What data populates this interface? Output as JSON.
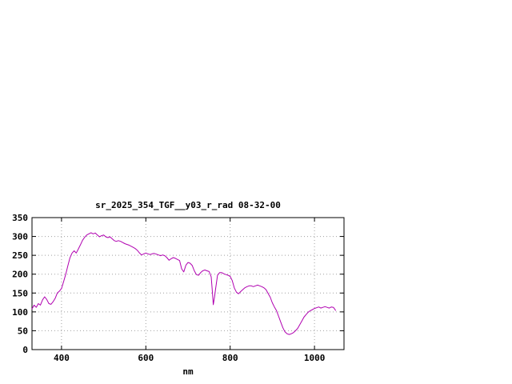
{
  "figure": {
    "title": "sr_2025_354_TGF__y03_r_rad 08-32-00",
    "xlabel": "nm"
  },
  "chart_data": {
    "type": "line",
    "title": "sr_2025_354_TGF__y03_r_rad 08-32-00",
    "xlabel": "nm",
    "ylabel": "",
    "xlim": [
      330,
      1070
    ],
    "ylim": [
      0,
      350
    ],
    "xticks": [
      400,
      600,
      800,
      1000
    ],
    "yticks": [
      0,
      50,
      100,
      150,
      200,
      250,
      300,
      350
    ],
    "grid": true,
    "grid_color": "#a0a0a0",
    "line_color": "#b000b0",
    "legend_position": "none",
    "series": [
      {
        "name": "sr_2025_354_TGF__y03_r_rad",
        "x": [
          330,
          335,
          340,
          345,
          350,
          355,
          360,
          365,
          370,
          375,
          380,
          385,
          390,
          395,
          400,
          405,
          410,
          415,
          420,
          425,
          430,
          435,
          440,
          445,
          450,
          455,
          460,
          465,
          470,
          475,
          480,
          485,
          490,
          495,
          500,
          505,
          510,
          515,
          520,
          525,
          530,
          535,
          540,
          545,
          550,
          555,
          560,
          565,
          570,
          575,
          580,
          585,
          590,
          595,
          600,
          605,
          610,
          615,
          620,
          625,
          630,
          635,
          640,
          645,
          650,
          655,
          660,
          665,
          670,
          675,
          680,
          685,
          690,
          695,
          700,
          705,
          710,
          715,
          720,
          725,
          730,
          735,
          740,
          745,
          750,
          755,
          758,
          760,
          763,
          765,
          770,
          775,
          780,
          785,
          790,
          795,
          800,
          805,
          810,
          815,
          820,
          825,
          830,
          835,
          840,
          845,
          850,
          855,
          860,
          865,
          870,
          875,
          880,
          885,
          890,
          895,
          900,
          905,
          910,
          915,
          920,
          925,
          930,
          935,
          940,
          945,
          950,
          955,
          960,
          965,
          970,
          975,
          980,
          985,
          990,
          995,
          1000,
          1005,
          1010,
          1015,
          1020,
          1025,
          1030,
          1035,
          1040,
          1045,
          1050
        ],
        "y": [
          108,
          118,
          112,
          122,
          118,
          132,
          140,
          133,
          122,
          120,
          127,
          136,
          150,
          155,
          162,
          180,
          200,
          222,
          243,
          256,
          262,
          256,
          267,
          278,
          290,
          298,
          304,
          307,
          310,
          307,
          309,
          304,
          299,
          302,
          304,
          299,
          297,
          299,
          294,
          289,
          287,
          289,
          287,
          284,
          281,
          279,
          277,
          274,
          271,
          268,
          263,
          256,
          251,
          254,
          256,
          254,
          252,
          254,
          255,
          253,
          251,
          249,
          251,
          249,
          244,
          237,
          241,
          244,
          242,
          239,
          236,
          214,
          206,
          224,
          231,
          229,
          223,
          209,
          199,
          197,
          204,
          209,
          211,
          209,
          207,
          193,
          150,
          119,
          140,
          158,
          197,
          204,
          204,
          201,
          199,
          197,
          194,
          183,
          163,
          152,
          148,
          154,
          159,
          164,
          167,
          169,
          169,
          167,
          169,
          171,
          169,
          167,
          164,
          159,
          149,
          139,
          124,
          113,
          103,
          88,
          73,
          58,
          47,
          42,
          40,
          42,
          45,
          50,
          56,
          66,
          76,
          86,
          93,
          99,
          103,
          106,
          109,
          111,
          113,
          110,
          112,
          114,
          112,
          110,
          113,
          112,
          104
        ]
      }
    ]
  }
}
